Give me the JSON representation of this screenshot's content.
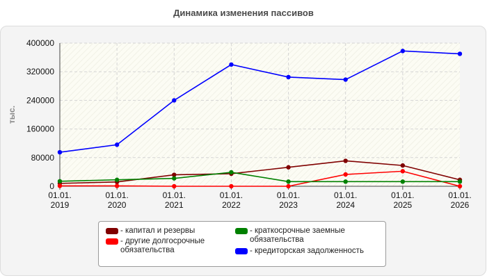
{
  "chart_data": {
    "type": "line",
    "title": "Динамика изменения пассивов",
    "ylabel": "тыс.",
    "xlabel": "",
    "ylim": [
      0,
      400000
    ],
    "yticks": [
      0,
      80000,
      160000,
      240000,
      320000,
      400000
    ],
    "x": [
      "01.01.\n2019",
      "01.01.\n2020",
      "01.01.\n2021",
      "01.01.\n2022",
      "01.01.\n2023",
      "01.01.\n2024",
      "01.01.\n2025",
      "01.01.\n2026"
    ],
    "grid": true,
    "legend_position": "bottom",
    "series": [
      {
        "name": "капитал и резервы",
        "color": "#800000",
        "values": [
          8000,
          12000,
          32000,
          35000,
          53000,
          71000,
          58000,
          18000
        ]
      },
      {
        "name": "другие долгосрочные обязательства",
        "color": "#ff0000",
        "values": [
          1000,
          1000,
          0,
          0,
          0,
          33000,
          42000,
          0
        ]
      },
      {
        "name": "краткосрочные заемные обязательства",
        "color": "#008000",
        "values": [
          14000,
          18000,
          22000,
          39000,
          13000,
          13000,
          13000,
          13000
        ]
      },
      {
        "name": "кредиторская задолженность",
        "color": "#0000ff",
        "values": [
          95000,
          116000,
          240000,
          340000,
          305000,
          298000,
          378000,
          370000
        ]
      }
    ]
  }
}
